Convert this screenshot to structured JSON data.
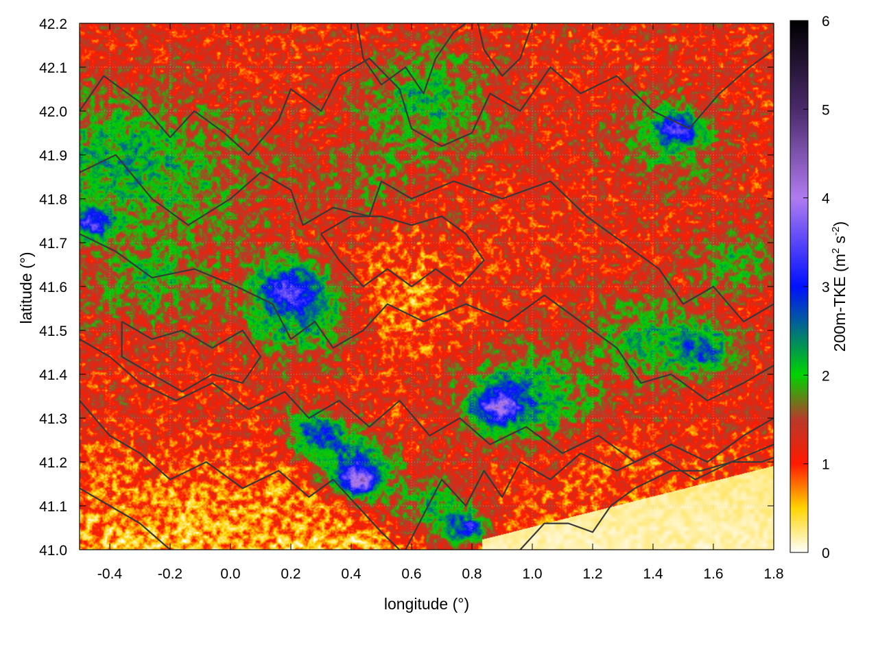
{
  "chart_data": {
    "type": "heatmap",
    "title": "",
    "xlabel": "longitude (°)",
    "ylabel": "latitude (°)",
    "colorbar_label": "200m-TKE (m² s⁻²)",
    "colorbar_label_parts": {
      "main": "200m-TKE (m",
      "sup1": "2",
      "mid": " s",
      "sup2": "-2",
      "end": ")"
    },
    "xlim": [
      -0.5,
      1.8
    ],
    "ylim": [
      41.0,
      42.2
    ],
    "clim": [
      0,
      6
    ],
    "x_ticks": [
      -0.4,
      -0.2,
      0.0,
      0.2,
      0.4,
      0.6,
      0.8,
      1.0,
      1.2,
      1.4,
      1.6,
      1.8
    ],
    "x_tick_labels": [
      "-0.4",
      "-0.2",
      "0.0",
      "0.2",
      "0.4",
      "0.6",
      "0.8",
      "1.0",
      "1.2",
      "1.4",
      "1.6",
      "1.8"
    ],
    "y_ticks": [
      41.0,
      41.1,
      41.2,
      41.3,
      41.4,
      41.5,
      41.6,
      41.7,
      41.8,
      41.9,
      42.0,
      42.1,
      42.2
    ],
    "y_tick_labels": [
      "41.0",
      "41.1",
      "41.2",
      "41.3",
      "41.4",
      "41.5",
      "41.6",
      "41.7",
      "41.8",
      "41.9",
      "42.0",
      "42.1",
      "42.2"
    ],
    "colorbar_ticks": [
      0,
      1,
      2,
      3,
      4,
      5,
      6
    ],
    "colorbar_tick_labels": [
      "0",
      "1",
      "2",
      "3",
      "4",
      "5",
      "6"
    ],
    "colormap": [
      {
        "value": 0.0,
        "color": "#ffffff"
      },
      {
        "value": 0.5,
        "color": "#ffd400"
      },
      {
        "value": 1.0,
        "color": "#ff1a00"
      },
      {
        "value": 1.5,
        "color": "#b83a2a"
      },
      {
        "value": 2.0,
        "color": "#00d400"
      },
      {
        "value": 3.0,
        "color": "#0010ff"
      },
      {
        "value": 4.0,
        "color": "#b07cf0"
      },
      {
        "value": 5.0,
        "color": "#4a2a6a"
      },
      {
        "value": 6.0,
        "color": "#000000"
      }
    ],
    "grid": true,
    "contours": [
      [
        [
          -0.5,
          42.0
        ],
        [
          -0.42,
          42.08
        ],
        [
          -0.3,
          42.02
        ],
        [
          -0.2,
          41.94
        ],
        [
          -0.12,
          42.0
        ],
        [
          -0.02,
          41.95
        ],
        [
          0.06,
          41.9
        ],
        [
          0.16,
          41.98
        ],
        [
          0.2,
          42.05
        ],
        [
          0.3,
          42.0
        ],
        [
          0.36,
          42.08
        ],
        [
          0.46,
          42.12
        ],
        [
          0.56,
          42.05
        ],
        [
          0.6,
          41.96
        ],
        [
          0.7,
          41.92
        ],
        [
          0.8,
          41.95
        ],
        [
          0.86,
          42.04
        ],
        [
          0.96,
          42.0
        ],
        [
          1.06,
          42.1
        ],
        [
          1.16,
          42.04
        ],
        [
          1.28,
          42.08
        ],
        [
          1.4,
          42.0
        ],
        [
          1.52,
          41.96
        ],
        [
          1.62,
          42.04
        ],
        [
          1.72,
          42.1
        ],
        [
          1.8,
          42.14
        ]
      ],
      [
        [
          -0.5,
          41.86
        ],
        [
          -0.38,
          41.9
        ],
        [
          -0.26,
          41.8
        ],
        [
          -0.14,
          41.74
        ],
        [
          0.0,
          41.8
        ],
        [
          0.1,
          41.86
        ],
        [
          0.2,
          41.82
        ],
        [
          0.24,
          41.74
        ],
        [
          0.34,
          41.78
        ],
        [
          0.46,
          41.76
        ],
        [
          0.5,
          41.84
        ],
        [
          0.6,
          41.8
        ],
        [
          0.74,
          41.84
        ],
        [
          0.9,
          41.8
        ],
        [
          1.06,
          41.84
        ],
        [
          1.18,
          41.76
        ],
        [
          1.3,
          41.7
        ],
        [
          1.42,
          41.64
        ],
        [
          1.5,
          41.56
        ],
        [
          1.6,
          41.6
        ],
        [
          1.7,
          41.52
        ],
        [
          1.8,
          41.56
        ]
      ],
      [
        [
          -0.5,
          41.72
        ],
        [
          -0.38,
          41.68
        ],
        [
          -0.26,
          41.62
        ],
        [
          -0.12,
          41.64
        ],
        [
          0.02,
          41.6
        ],
        [
          0.14,
          41.56
        ],
        [
          0.2,
          41.48
        ],
        [
          0.28,
          41.52
        ],
        [
          0.34,
          41.46
        ],
        [
          0.44,
          41.5
        ],
        [
          0.52,
          41.56
        ],
        [
          0.64,
          41.52
        ],
        [
          0.78,
          41.56
        ],
        [
          0.92,
          41.52
        ],
        [
          1.04,
          41.58
        ],
        [
          1.16,
          41.52
        ],
        [
          1.28,
          41.46
        ],
        [
          1.36,
          41.38
        ],
        [
          1.46,
          41.4
        ],
        [
          1.58,
          41.34
        ],
        [
          1.7,
          41.38
        ],
        [
          1.8,
          41.42
        ]
      ],
      [
        [
          -0.5,
          41.48
        ],
        [
          -0.4,
          41.44
        ],
        [
          -0.3,
          41.38
        ],
        [
          -0.18,
          41.34
        ],
        [
          -0.06,
          41.38
        ],
        [
          0.06,
          41.32
        ],
        [
          0.18,
          41.36
        ],
        [
          0.26,
          41.3
        ],
        [
          0.36,
          41.34
        ],
        [
          0.46,
          41.28
        ],
        [
          0.56,
          41.34
        ],
        [
          0.66,
          41.26
        ],
        [
          0.76,
          41.3
        ],
        [
          0.86,
          41.24
        ],
        [
          0.98,
          41.28
        ],
        [
          1.1,
          41.22
        ],
        [
          1.22,
          41.26
        ],
        [
          1.34,
          41.2
        ],
        [
          1.46,
          41.24
        ],
        [
          1.58,
          41.2
        ],
        [
          1.7,
          41.26
        ],
        [
          1.8,
          41.3
        ]
      ],
      [
        [
          -0.5,
          41.34
        ],
        [
          -0.4,
          41.26
        ],
        [
          -0.3,
          41.22
        ],
        [
          -0.2,
          41.16
        ],
        [
          -0.08,
          41.2
        ],
        [
          0.04,
          41.14
        ],
        [
          0.16,
          41.18
        ],
        [
          0.26,
          41.12
        ],
        [
          0.34,
          41.16
        ],
        [
          0.42,
          41.1
        ],
        [
          0.5,
          41.04
        ],
        [
          0.56,
          41.0
        ]
      ],
      [
        [
          0.58,
          41.0
        ],
        [
          0.64,
          41.08
        ],
        [
          0.7,
          41.16
        ],
        [
          0.78,
          41.1
        ],
        [
          0.84,
          41.18
        ],
        [
          0.9,
          41.12
        ],
        [
          0.96,
          41.2
        ],
        [
          1.06,
          41.16
        ],
        [
          1.16,
          41.22
        ],
        [
          1.28,
          41.18
        ],
        [
          1.4,
          41.22
        ],
        [
          1.54,
          41.16
        ],
        [
          1.66,
          41.2
        ],
        [
          1.8,
          41.24
        ]
      ],
      [
        [
          -0.5,
          41.14
        ],
        [
          -0.4,
          41.1
        ],
        [
          -0.3,
          41.06
        ],
        [
          -0.2,
          41.0
        ]
      ],
      [
        [
          0.96,
          41.0
        ],
        [
          1.04,
          41.06
        ],
        [
          1.12,
          41.06
        ],
        [
          1.2,
          41.04
        ],
        [
          1.26,
          41.1
        ],
        [
          1.34,
          41.14
        ],
        [
          1.46,
          41.18
        ],
        [
          1.56,
          41.18
        ],
        [
          1.66,
          41.2
        ],
        [
          1.76,
          41.2
        ],
        [
          1.8,
          41.21
        ]
      ],
      [
        [
          0.42,
          42.2
        ],
        [
          0.44,
          42.12
        ],
        [
          0.5,
          42.06
        ],
        [
          0.58,
          42.1
        ],
        [
          0.64,
          42.04
        ],
        [
          0.68,
          42.12
        ],
        [
          0.74,
          42.18
        ],
        [
          0.78,
          42.2
        ]
      ],
      [
        [
          0.82,
          42.2
        ],
        [
          0.84,
          42.14
        ],
        [
          0.9,
          42.08
        ],
        [
          0.96,
          42.12
        ],
        [
          1.0,
          42.2
        ]
      ],
      [
        [
          0.3,
          41.72
        ],
        [
          0.36,
          41.66
        ],
        [
          0.44,
          41.6
        ],
        [
          0.52,
          41.64
        ],
        [
          0.6,
          41.6
        ],
        [
          0.68,
          41.64
        ],
        [
          0.76,
          41.6
        ],
        [
          0.84,
          41.66
        ],
        [
          0.78,
          41.72
        ],
        [
          0.7,
          41.76
        ],
        [
          0.6,
          41.74
        ],
        [
          0.5,
          41.76
        ],
        [
          0.4,
          41.76
        ],
        [
          0.3,
          41.72
        ]
      ],
      [
        [
          -0.36,
          41.52
        ],
        [
          -0.26,
          41.48
        ],
        [
          -0.16,
          41.5
        ],
        [
          -0.06,
          41.46
        ],
        [
          0.04,
          41.5
        ],
        [
          0.1,
          41.44
        ],
        [
          0.04,
          41.38
        ],
        [
          -0.06,
          41.4
        ],
        [
          -0.16,
          41.36
        ],
        [
          -0.26,
          41.4
        ],
        [
          -0.36,
          41.44
        ],
        [
          -0.36,
          41.52
        ]
      ]
    ]
  }
}
